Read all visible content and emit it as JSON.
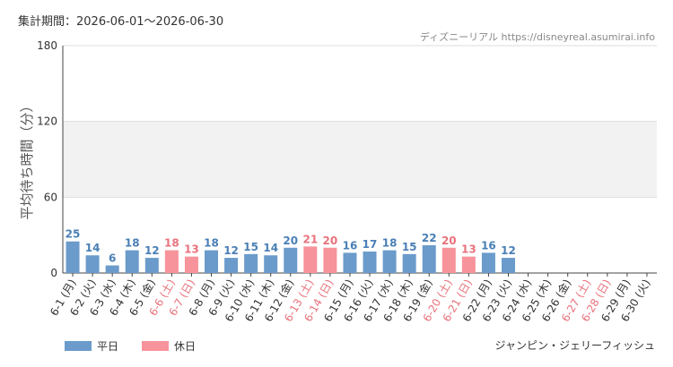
{
  "header": {
    "period": "集計期間：2026-06-01～2026-06-30",
    "source": "ディズニーリアル https://disneyreal.asumirai.info"
  },
  "footer": {
    "attraction": "ジャンピン・ジェリーフィッシュ"
  },
  "colors": {
    "weekday": "#6b9bcb",
    "holiday": "#f7939b",
    "weekday_text": "#4a7fb5",
    "holiday_text": "#e9727c"
  },
  "chart_data": {
    "type": "bar",
    "ylabel": "平均待ち時間（分）",
    "ylim": [
      0,
      180
    ],
    "yticks": [
      0,
      60,
      120,
      180
    ],
    "band": [
      60,
      120
    ],
    "categories": [
      "6-1 (月)",
      "6-2 (火)",
      "6-3 (水)",
      "6-4 (木)",
      "6-5 (金)",
      "6-6 (土)",
      "6-7 (日)",
      "6-8 (月)",
      "6-9 (火)",
      "6-10 (水)",
      "6-11 (木)",
      "6-12 (金)",
      "6-13 (土)",
      "6-14 (日)",
      "6-15 (月)",
      "6-16 (火)",
      "6-17 (水)",
      "6-18 (木)",
      "6-19 (金)",
      "6-20 (土)",
      "6-21 (日)",
      "6-22 (月)",
      "6-23 (火)",
      "6-24 (水)",
      "6-25 (木)",
      "6-26 (金)",
      "6-27 (土)",
      "6-28 (日)",
      "6-29 (月)",
      "6-30 (火)"
    ],
    "values": [
      25,
      14,
      6,
      18,
      12,
      18,
      13,
      18,
      12,
      15,
      14,
      20,
      21,
      20,
      16,
      17,
      18,
      15,
      22,
      20,
      13,
      16,
      12,
      null,
      null,
      null,
      null,
      null,
      null,
      null
    ],
    "day_type": [
      "weekday",
      "weekday",
      "weekday",
      "weekday",
      "weekday",
      "holiday",
      "holiday",
      "weekday",
      "weekday",
      "weekday",
      "weekday",
      "weekday",
      "holiday",
      "holiday",
      "weekday",
      "weekday",
      "weekday",
      "weekday",
      "weekday",
      "holiday",
      "holiday",
      "weekday",
      "weekday",
      "weekday",
      "weekday",
      "weekday",
      "holiday",
      "holiday",
      "weekday",
      "weekday"
    ],
    "legend": [
      {
        "name": "平日",
        "type": "weekday"
      },
      {
        "name": "休日",
        "type": "holiday"
      }
    ]
  }
}
